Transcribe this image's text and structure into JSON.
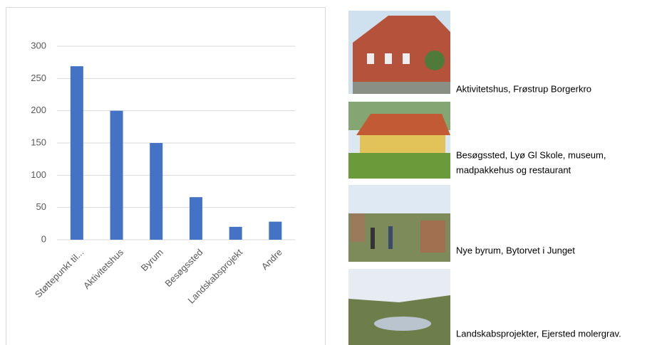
{
  "chart_data": {
    "type": "bar",
    "categories": [
      "Støttepunkt til...",
      "Aktivitetshus",
      "Byrum",
      "Besøgssted",
      "Landskabsprojekt",
      "Andre"
    ],
    "values": [
      269,
      200,
      150,
      66,
      20,
      28
    ],
    "color": "#4472c4",
    "ylim": [
      0,
      300
    ],
    "yticks": [
      0,
      50,
      100,
      150,
      200,
      250,
      300
    ],
    "grid": true
  },
  "captions": [
    [
      "Aktivitetshus, Frøstrup Borgerkro"
    ],
    [
      "Besøgssted, Lyø Gl Skole, museum,",
      "madpakkehus og restaurant"
    ],
    [
      "Nye byrum, Bytorvet i Junget"
    ],
    [
      "Landskabsprojekter, Ejersted molergrav."
    ]
  ]
}
